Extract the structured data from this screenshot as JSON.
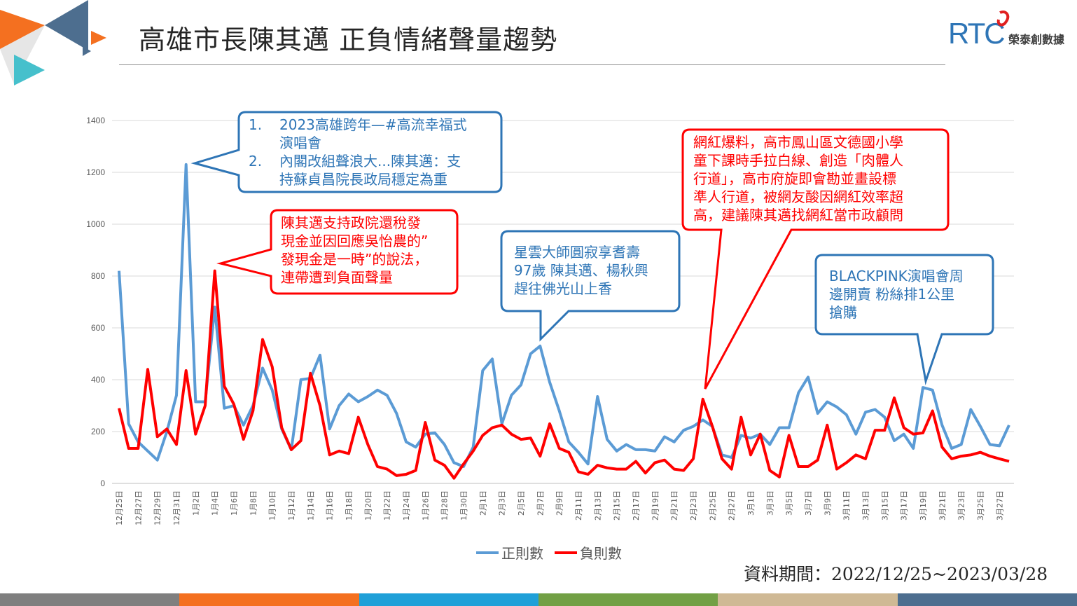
{
  "slide": {
    "title": "高雄市長陳其邁 正負情緒聲量趨勢",
    "source_note": "資料期間：2022/12/25~2023/03/28"
  },
  "logo": {
    "text": "RTC",
    "subtext": "榮泰創數據"
  },
  "legend": {
    "positive_label": "正則數",
    "negative_label": "負則數"
  },
  "callouts": {
    "c1": {
      "num1": "1.",
      "line1a": "2023高雄跨年—#高流幸福式",
      "line1b": "演唱會",
      "num2": "2.",
      "line2a": "內閣改組聲浪大...陳其邁：支",
      "line2b": "持蘇貞昌院長政局穩定為重"
    },
    "c2": {
      "l1": "陳其邁支持政院還稅發",
      "l2": "現金並因回應吳怡農的”",
      "l3": "發現金是一時”的說法，",
      "l4": "連帶遭到負面聲量"
    },
    "c3": {
      "l1": "星雲大師圓寂享耆壽",
      "l2": "97歲 陳其邁、楊秋興",
      "l3": "趕往佛光山上香"
    },
    "c4": {
      "l1": "網紅爆料，高市鳳山區文德國小學",
      "l2": "童下課時手拉白線、創造「肉體人",
      "l3": "行道」，高市府旋即會勘並畫設標",
      "l4": "準人行道，被網友酸因網紅效率超",
      "l5": "高，建議陳其邁找網紅當市政顧問"
    },
    "c5": {
      "l1": "BLACKPINK演唱會周",
      "l2": "邊開賣 粉絲排1公里",
      "l3": "搶購"
    }
  },
  "colors": {
    "positive": "#5b9bd5",
    "negative": "#ff0000",
    "callout_blue": "#2e75b6",
    "callout_red": "#ff0000",
    "footer": [
      "#7f7f7f",
      "#f47020",
      "#1fa0d8",
      "#72a045",
      "#cfb995",
      "#4d6e8f"
    ],
    "decor": [
      "#f47020",
      "#4d6e8f",
      "#46c0cc",
      "#e8e8e8"
    ]
  },
  "chart_data": {
    "type": "line",
    "x": [
      "12月25日",
      "12月26日",
      "12月27日",
      "12月28日",
      "12月29日",
      "12月30日",
      "12月31日",
      "1月1日",
      "1月2日",
      "1月3日",
      "1月4日",
      "1月5日",
      "1月6日",
      "1月7日",
      "1月8日",
      "1月9日",
      "1月10日",
      "1月11日",
      "1月12日",
      "1月13日",
      "1月14日",
      "1月15日",
      "1月16日",
      "1月17日",
      "1月18日",
      "1月19日",
      "1月20日",
      "1月21日",
      "1月22日",
      "1月23日",
      "1月24日",
      "1月25日",
      "1月26日",
      "1月27日",
      "1月28日",
      "1月29日",
      "1月30日",
      "1月31日",
      "2月1日",
      "2月2日",
      "2月3日",
      "2月4日",
      "2月5日",
      "2月6日",
      "2月7日",
      "2月8日",
      "2月9日",
      "2月10日",
      "2月11日",
      "2月12日",
      "2月13日",
      "2月14日",
      "2月15日",
      "2月16日",
      "2月17日",
      "2月18日",
      "2月19日",
      "2月20日",
      "2月21日",
      "2月22日",
      "2月23日",
      "2月24日",
      "2月25日",
      "2月26日",
      "2月27日",
      "2月28日",
      "3月1日",
      "3月2日",
      "3月3日",
      "3月4日",
      "3月5日",
      "3月6日",
      "3月7日",
      "3月8日",
      "3月9日",
      "3月10日",
      "3月11日",
      "3月12日",
      "3月13日",
      "3月14日",
      "3月15日",
      "3月16日",
      "3月17日",
      "3月18日",
      "3月19日",
      "3月20日",
      "3月21日",
      "3月22日",
      "3月23日",
      "3月24日",
      "3月25日",
      "3月26日",
      "3月27日",
      "3月28日"
    ],
    "tick_labels": [
      "12月25日",
      "12月27日",
      "12月29日",
      "12月31日",
      "1月2日",
      "1月4日",
      "1月6日",
      "1月8日",
      "1月10日",
      "1月12日",
      "1月14日",
      "1月16日",
      "1月18日",
      "1月20日",
      "1月22日",
      "1月24日",
      "1月26日",
      "1月28日",
      "1月30日",
      "2月1日",
      "2月3日",
      "2月5日",
      "2月7日",
      "2月9日",
      "2月11日",
      "2月13日",
      "2月15日",
      "2月17日",
      "2月19日",
      "2月21日",
      "2月23日",
      "2月25日",
      "2月27日",
      "3月1日",
      "3月3日",
      "3月5日",
      "3月7日",
      "3月9日",
      "3月11日",
      "3月13日",
      "3月15日",
      "3月17日",
      "3月19日",
      "3月21日",
      "3月23日",
      "3月25日",
      "3月27日"
    ],
    "yticks": [
      0,
      200,
      400,
      600,
      800,
      1000,
      1200,
      1400
    ],
    "ylim": [
      0,
      1400
    ],
    "grid": true,
    "legend_position": "bottom",
    "series": [
      {
        "name": "正則數",
        "values": [
          820,
          230,
          160,
          125,
          90,
          200,
          340,
          1230,
          315,
          315,
          680,
          290,
          300,
          225,
          300,
          445,
          360,
          210,
          130,
          400,
          405,
          495,
          210,
          300,
          345,
          315,
          335,
          360,
          340,
          270,
          160,
          140,
          190,
          195,
          150,
          80,
          65,
          140,
          435,
          480,
          230,
          340,
          380,
          500,
          530,
          390,
          280,
          160,
          120,
          75,
          335,
          170,
          125,
          150,
          130,
          130,
          125,
          180,
          160,
          205,
          220,
          245,
          220,
          110,
          100,
          185,
          175,
          190,
          150,
          215,
          215,
          350,
          410,
          270,
          315,
          295,
          265,
          190,
          275,
          285,
          255,
          165,
          190,
          135,
          370,
          360,
          225,
          135,
          150,
          285,
          220,
          150,
          145,
          225
        ]
      },
      {
        "name": "負則數",
        "values": [
          290,
          135,
          135,
          440,
          180,
          210,
          150,
          435,
          190,
          300,
          820,
          375,
          305,
          170,
          280,
          555,
          450,
          215,
          130,
          165,
          425,
          300,
          110,
          125,
          115,
          255,
          150,
          65,
          55,
          30,
          35,
          50,
          235,
          90,
          70,
          20,
          75,
          125,
          185,
          215,
          225,
          190,
          170,
          175,
          105,
          230,
          135,
          120,
          45,
          35,
          70,
          60,
          55,
          55,
          85,
          40,
          80,
          90,
          55,
          50,
          95,
          325,
          220,
          95,
          55,
          255,
          110,
          190,
          50,
          25,
          185,
          65,
          65,
          90,
          225,
          55,
          80,
          110,
          95,
          205,
          205,
          330,
          215,
          190,
          195,
          280,
          140,
          95,
          105,
          110,
          120,
          105,
          95,
          85
        ]
      }
    ]
  }
}
